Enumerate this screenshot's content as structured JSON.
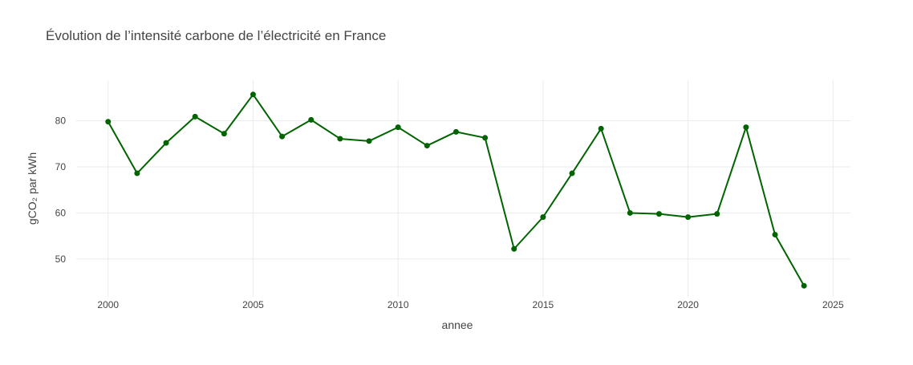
{
  "chart_data": {
    "type": "line",
    "title": "Évolution de l’intensité carbone de l’électricité en France",
    "xlabel": "annee",
    "ylabel": "gCO₂ par kWh",
    "x": [
      2000,
      2001,
      2002,
      2003,
      2004,
      2005,
      2006,
      2007,
      2008,
      2009,
      2010,
      2011,
      2012,
      2013,
      2014,
      2015,
      2016,
      2017,
      2018,
      2019,
      2020,
      2021,
      2022,
      2023,
      2024
    ],
    "series": [
      {
        "name": "",
        "color": "#006400",
        "values": [
          79.8,
          68.6,
          75.2,
          80.9,
          77.2,
          85.7,
          76.6,
          80.2,
          76.1,
          75.6,
          78.6,
          74.6,
          77.6,
          76.3,
          52.2,
          59.1,
          68.6,
          78.3,
          60.0,
          59.8,
          59.1,
          59.8,
          78.6,
          55.3,
          44.2
        ]
      }
    ],
    "xlim": [
      1998.9,
      2025.6
    ],
    "ylim": [
      41.8,
      88.8
    ],
    "xticks": [
      2000,
      2005,
      2010,
      2015,
      2020,
      2025
    ],
    "yticks": [
      50,
      60,
      70,
      80
    ],
    "grid": true,
    "legend": "none"
  }
}
